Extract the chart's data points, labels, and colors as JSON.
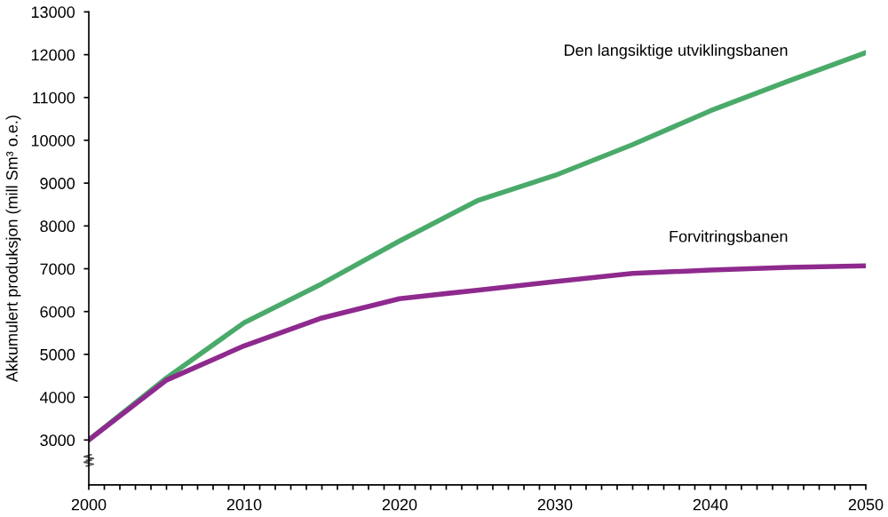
{
  "chart_data": {
    "type": "line",
    "ylabel": "Akkumulert produksjon (mill Sm³ o.e.)",
    "x": [
      2000,
      2005,
      2010,
      2015,
      2020,
      2025,
      2030,
      2035,
      2040,
      2045,
      2050
    ],
    "series": [
      {
        "name": "Den langsiktige utviklingsbanen",
        "color": "#4aaa6a",
        "values": [
          3000,
          4450,
          5740,
          6650,
          7650,
          8590,
          9180,
          9900,
          10690,
          11380,
          12050
        ]
      },
      {
        "name": "Forvitringsbanen",
        "color": "#8e2a8e",
        "values": [
          3000,
          4400,
          5200,
          5850,
          6300,
          6500,
          6700,
          6890,
          6970,
          7030,
          7070
        ]
      }
    ],
    "xlim": [
      2000,
      2050
    ],
    "xticks": [
      2000,
      {
        "value": 2001,
        "label": null
      },
      {
        "value": 2002,
        "label": null
      },
      {
        "value": 2003,
        "label": null
      },
      {
        "value": 2004,
        "label": null
      },
      {
        "value": 2005,
        "label": null
      },
      {
        "value": 2006,
        "label": null
      },
      {
        "value": 2007,
        "label": null
      },
      {
        "value": 2008,
        "label": null
      },
      {
        "value": 2009,
        "label": null
      },
      2010,
      {
        "value": 2011,
        "label": null
      },
      {
        "value": 2012,
        "label": null
      },
      {
        "value": 2013,
        "label": null
      },
      {
        "value": 2014,
        "label": null
      },
      {
        "value": 2015,
        "label": null
      },
      {
        "value": 2016,
        "label": null
      },
      {
        "value": 2017,
        "label": null
      },
      {
        "value": 2018,
        "label": null
      },
      {
        "value": 2019,
        "label": null
      },
      2020,
      {
        "value": 2021,
        "label": null
      },
      {
        "value": 2022,
        "label": null
      },
      {
        "value": 2023,
        "label": null
      },
      {
        "value": 2024,
        "label": null
      },
      {
        "value": 2025,
        "label": null
      },
      {
        "value": 2026,
        "label": null
      },
      {
        "value": 2027,
        "label": null
      },
      {
        "value": 2028,
        "label": null
      },
      {
        "value": 2029,
        "label": null
      },
      2030,
      {
        "value": 2031,
        "label": null
      },
      {
        "value": 2032,
        "label": null
      },
      {
        "value": 2033,
        "label": null
      },
      {
        "value": 2034,
        "label": null
      },
      {
        "value": 2035,
        "label": null
      },
      {
        "value": 2036,
        "label": null
      },
      {
        "value": 2037,
        "label": null
      },
      {
        "value": 2038,
        "label": null
      },
      {
        "value": 2039,
        "label": null
      },
      2040,
      {
        "value": 2041,
        "label": null
      },
      {
        "value": 2042,
        "label": null
      },
      {
        "value": 2043,
        "label": null
      },
      {
        "value": 2044,
        "label": null
      },
      {
        "value": 2045,
        "label": null
      },
      {
        "value": 2046,
        "label": null
      },
      {
        "value": 2047,
        "label": null
      },
      {
        "value": 2048,
        "label": null
      },
      {
        "value": 2049,
        "label": null
      },
      2050
    ],
    "ylim": [
      1950,
      13000
    ],
    "yticks": [
      3000,
      4000,
      5000,
      6000,
      7000,
      8000,
      9000,
      10000,
      11000,
      12000,
      13000
    ],
    "grid": false,
    "legend": false,
    "marker": "none",
    "line_style": "solid"
  }
}
